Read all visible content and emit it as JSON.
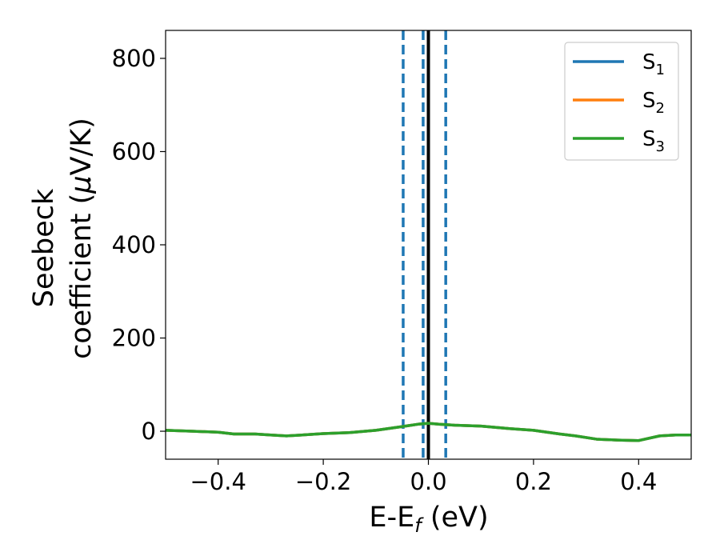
{
  "chart_data": {
    "type": "line",
    "xlabel": "E-E",
    "xlabel_sub": "f",
    "xlabel_unit": " (eV)",
    "ylabel_line1": "Seebeck",
    "ylabel_line2_pre": "coefficient  (",
    "ylabel_mu": "μ",
    "ylabel_line2_post": "V/K)",
    "xlim": [
      -0.5,
      0.5
    ],
    "ylim": [
      -60,
      860
    ],
    "xticks": [
      -0.4,
      -0.2,
      0.0,
      0.2,
      0.4
    ],
    "xtick_labels": [
      "−0.4",
      "−0.2",
      "0.0",
      "0.2",
      "0.4"
    ],
    "yticks": [
      0,
      200,
      400,
      600,
      800
    ],
    "ytick_labels": [
      "0",
      "200",
      "400",
      "600",
      "800"
    ],
    "grid": false,
    "legend_position": "top-right",
    "series": [
      {
        "name": "S",
        "sub": "1",
        "color": "#1f77b4",
        "x": [
          -0.5,
          -0.45,
          -0.4,
          -0.37,
          -0.33,
          -0.3,
          -0.27,
          -0.24,
          -0.2,
          -0.15,
          -0.1,
          -0.05,
          -0.02,
          0.0,
          0.02,
          0.05,
          0.1,
          0.15,
          0.2,
          0.25,
          0.28,
          0.32,
          0.36,
          0.4,
          0.44,
          0.47,
          0.5
        ],
        "y": [
          2,
          0,
          -2,
          -6,
          -6,
          -8,
          -10,
          -8,
          -5,
          -3,
          2,
          10,
          15,
          17,
          15,
          13,
          11,
          6,
          2,
          -6,
          -10,
          -17,
          -19,
          -20,
          -10,
          -8,
          -8
        ]
      },
      {
        "name": "S",
        "sub": "2",
        "color": "#ff7f0e",
        "x": [
          -0.5,
          -0.45,
          -0.4,
          -0.37,
          -0.33,
          -0.3,
          -0.27,
          -0.24,
          -0.2,
          -0.15,
          -0.1,
          -0.05,
          -0.02,
          0.0,
          0.02,
          0.05,
          0.1,
          0.15,
          0.2,
          0.25,
          0.28,
          0.32,
          0.36,
          0.4,
          0.44,
          0.47,
          0.5
        ],
        "y": [
          2,
          0,
          -2,
          -6,
          -6,
          -8,
          -10,
          -8,
          -5,
          -3,
          2,
          10,
          15,
          17,
          15,
          13,
          11,
          6,
          2,
          -6,
          -10,
          -17,
          -19,
          -20,
          -10,
          -8,
          -8
        ]
      },
      {
        "name": "S",
        "sub": "3",
        "color": "#2ca02c",
        "x": [
          -0.5,
          -0.45,
          -0.4,
          -0.37,
          -0.33,
          -0.3,
          -0.27,
          -0.24,
          -0.2,
          -0.15,
          -0.1,
          -0.05,
          -0.02,
          0.0,
          0.02,
          0.05,
          0.1,
          0.15,
          0.2,
          0.25,
          0.28,
          0.32,
          0.36,
          0.4,
          0.44,
          0.47,
          0.5
        ],
        "y": [
          2,
          0,
          -2,
          -6,
          -6,
          -8,
          -10,
          -8,
          -5,
          -3,
          2,
          10,
          15,
          17,
          15,
          13,
          11,
          6,
          2,
          -6,
          -10,
          -17,
          -19,
          -20,
          -10,
          -8,
          -8
        ]
      }
    ],
    "vlines": [
      {
        "x": -0.048,
        "style": "dashed",
        "color": "#1f77b4"
      },
      {
        "x": -0.01,
        "style": "dashed",
        "color": "#1f77b4"
      },
      {
        "x": 0.0,
        "style": "solid",
        "color": "#000000"
      },
      {
        "x": 0.033,
        "style": "dashed",
        "color": "#1f77b4"
      }
    ]
  }
}
